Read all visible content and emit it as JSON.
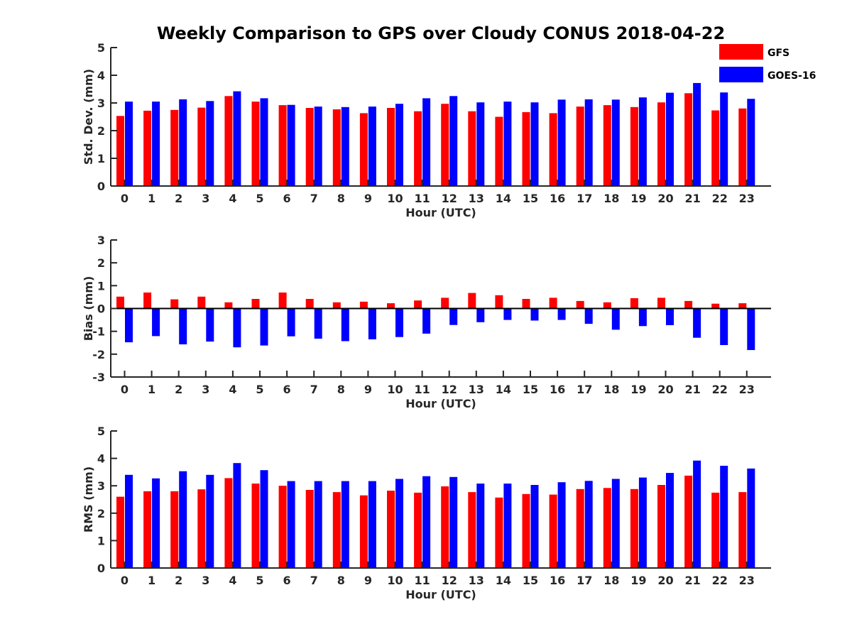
{
  "title": "Weekly Comparison to GPS over Cloudy CONUS 2018-04-22",
  "colors": {
    "GFS": "#ff0000",
    "GOES-16": "#0000ff",
    "axis": "#262626"
  },
  "legend": {
    "items": [
      "GFS",
      "GOES-16"
    ],
    "placement": "top-right"
  },
  "chart_data": [
    {
      "type": "bar",
      "name": "std",
      "xlabel": "Hour (UTC)",
      "ylabel": "Std. Dev. (mm)",
      "ylim": [
        0,
        5
      ],
      "yticks": [
        0,
        1,
        2,
        3,
        4,
        5
      ],
      "categories": [
        "0",
        "1",
        "2",
        "3",
        "4",
        "5",
        "6",
        "7",
        "8",
        "9",
        "10",
        "11",
        "12",
        "13",
        "14",
        "15",
        "16",
        "17",
        "18",
        "19",
        "20",
        "21",
        "22",
        "23"
      ],
      "series": [
        {
          "name": "GFS",
          "values": [
            2.53,
            2.72,
            2.75,
            2.83,
            3.25,
            3.05,
            2.92,
            2.82,
            2.77,
            2.63,
            2.82,
            2.7,
            2.97,
            2.7,
            2.5,
            2.67,
            2.63,
            2.87,
            2.92,
            2.85,
            3.02,
            3.35,
            2.73,
            2.8
          ]
        },
        {
          "name": "GOES-16",
          "values": [
            3.05,
            3.05,
            3.13,
            3.07,
            3.42,
            3.17,
            2.93,
            2.87,
            2.85,
            2.87,
            2.97,
            3.17,
            3.25,
            3.02,
            3.05,
            3.02,
            3.12,
            3.13,
            3.12,
            3.2,
            3.37,
            3.72,
            3.38,
            3.15
          ]
        }
      ]
    },
    {
      "type": "bar",
      "name": "bias",
      "xlabel": "Hour (UTC)",
      "ylabel": "Bias (mm)",
      "ylim": [
        -3,
        3
      ],
      "yticks": [
        -3,
        -2,
        -1,
        0,
        1,
        2,
        3
      ],
      "zero_line": true,
      "categories": [
        "0",
        "1",
        "2",
        "3",
        "4",
        "5",
        "6",
        "7",
        "8",
        "9",
        "10",
        "11",
        "12",
        "13",
        "14",
        "15",
        "16",
        "17",
        "18",
        "19",
        "20",
        "21",
        "22",
        "23"
      ],
      "series": [
        {
          "name": "GFS",
          "values": [
            0.52,
            0.7,
            0.4,
            0.52,
            0.27,
            0.42,
            0.7,
            0.42,
            0.27,
            0.3,
            0.23,
            0.35,
            0.47,
            0.68,
            0.58,
            0.42,
            0.47,
            0.33,
            0.27,
            0.45,
            0.47,
            0.33,
            0.21,
            0.23
          ]
        },
        {
          "name": "GOES-16",
          "values": [
            -1.48,
            -1.21,
            -1.57,
            -1.45,
            -1.7,
            -1.62,
            -1.22,
            -1.32,
            -1.43,
            -1.35,
            -1.25,
            -1.1,
            -0.72,
            -0.6,
            -0.5,
            -0.53,
            -0.5,
            -0.67,
            -0.93,
            -0.77,
            -0.73,
            -1.28,
            -1.6,
            -1.82
          ]
        }
      ]
    },
    {
      "type": "bar",
      "name": "rms",
      "xlabel": "Hour (UTC)",
      "ylabel": "RMS (mm)",
      "ylim": [
        0,
        5
      ],
      "yticks": [
        0,
        1,
        2,
        3,
        4,
        5
      ],
      "categories": [
        "0",
        "1",
        "2",
        "3",
        "4",
        "5",
        "6",
        "7",
        "8",
        "9",
        "10",
        "11",
        "12",
        "13",
        "14",
        "15",
        "16",
        "17",
        "18",
        "19",
        "20",
        "21",
        "22",
        "23"
      ],
      "series": [
        {
          "name": "GFS",
          "values": [
            2.6,
            2.8,
            2.8,
            2.87,
            3.28,
            3.08,
            3.0,
            2.85,
            2.77,
            2.65,
            2.82,
            2.75,
            2.98,
            2.77,
            2.57,
            2.7,
            2.68,
            2.88,
            2.92,
            2.88,
            3.03,
            3.37,
            2.75,
            2.77
          ]
        },
        {
          "name": "GOES-16",
          "values": [
            3.4,
            3.27,
            3.53,
            3.4,
            3.83,
            3.57,
            3.17,
            3.17,
            3.17,
            3.17,
            3.25,
            3.35,
            3.32,
            3.08,
            3.08,
            3.03,
            3.13,
            3.18,
            3.25,
            3.3,
            3.47,
            3.92,
            3.73,
            3.63
          ]
        }
      ]
    }
  ]
}
